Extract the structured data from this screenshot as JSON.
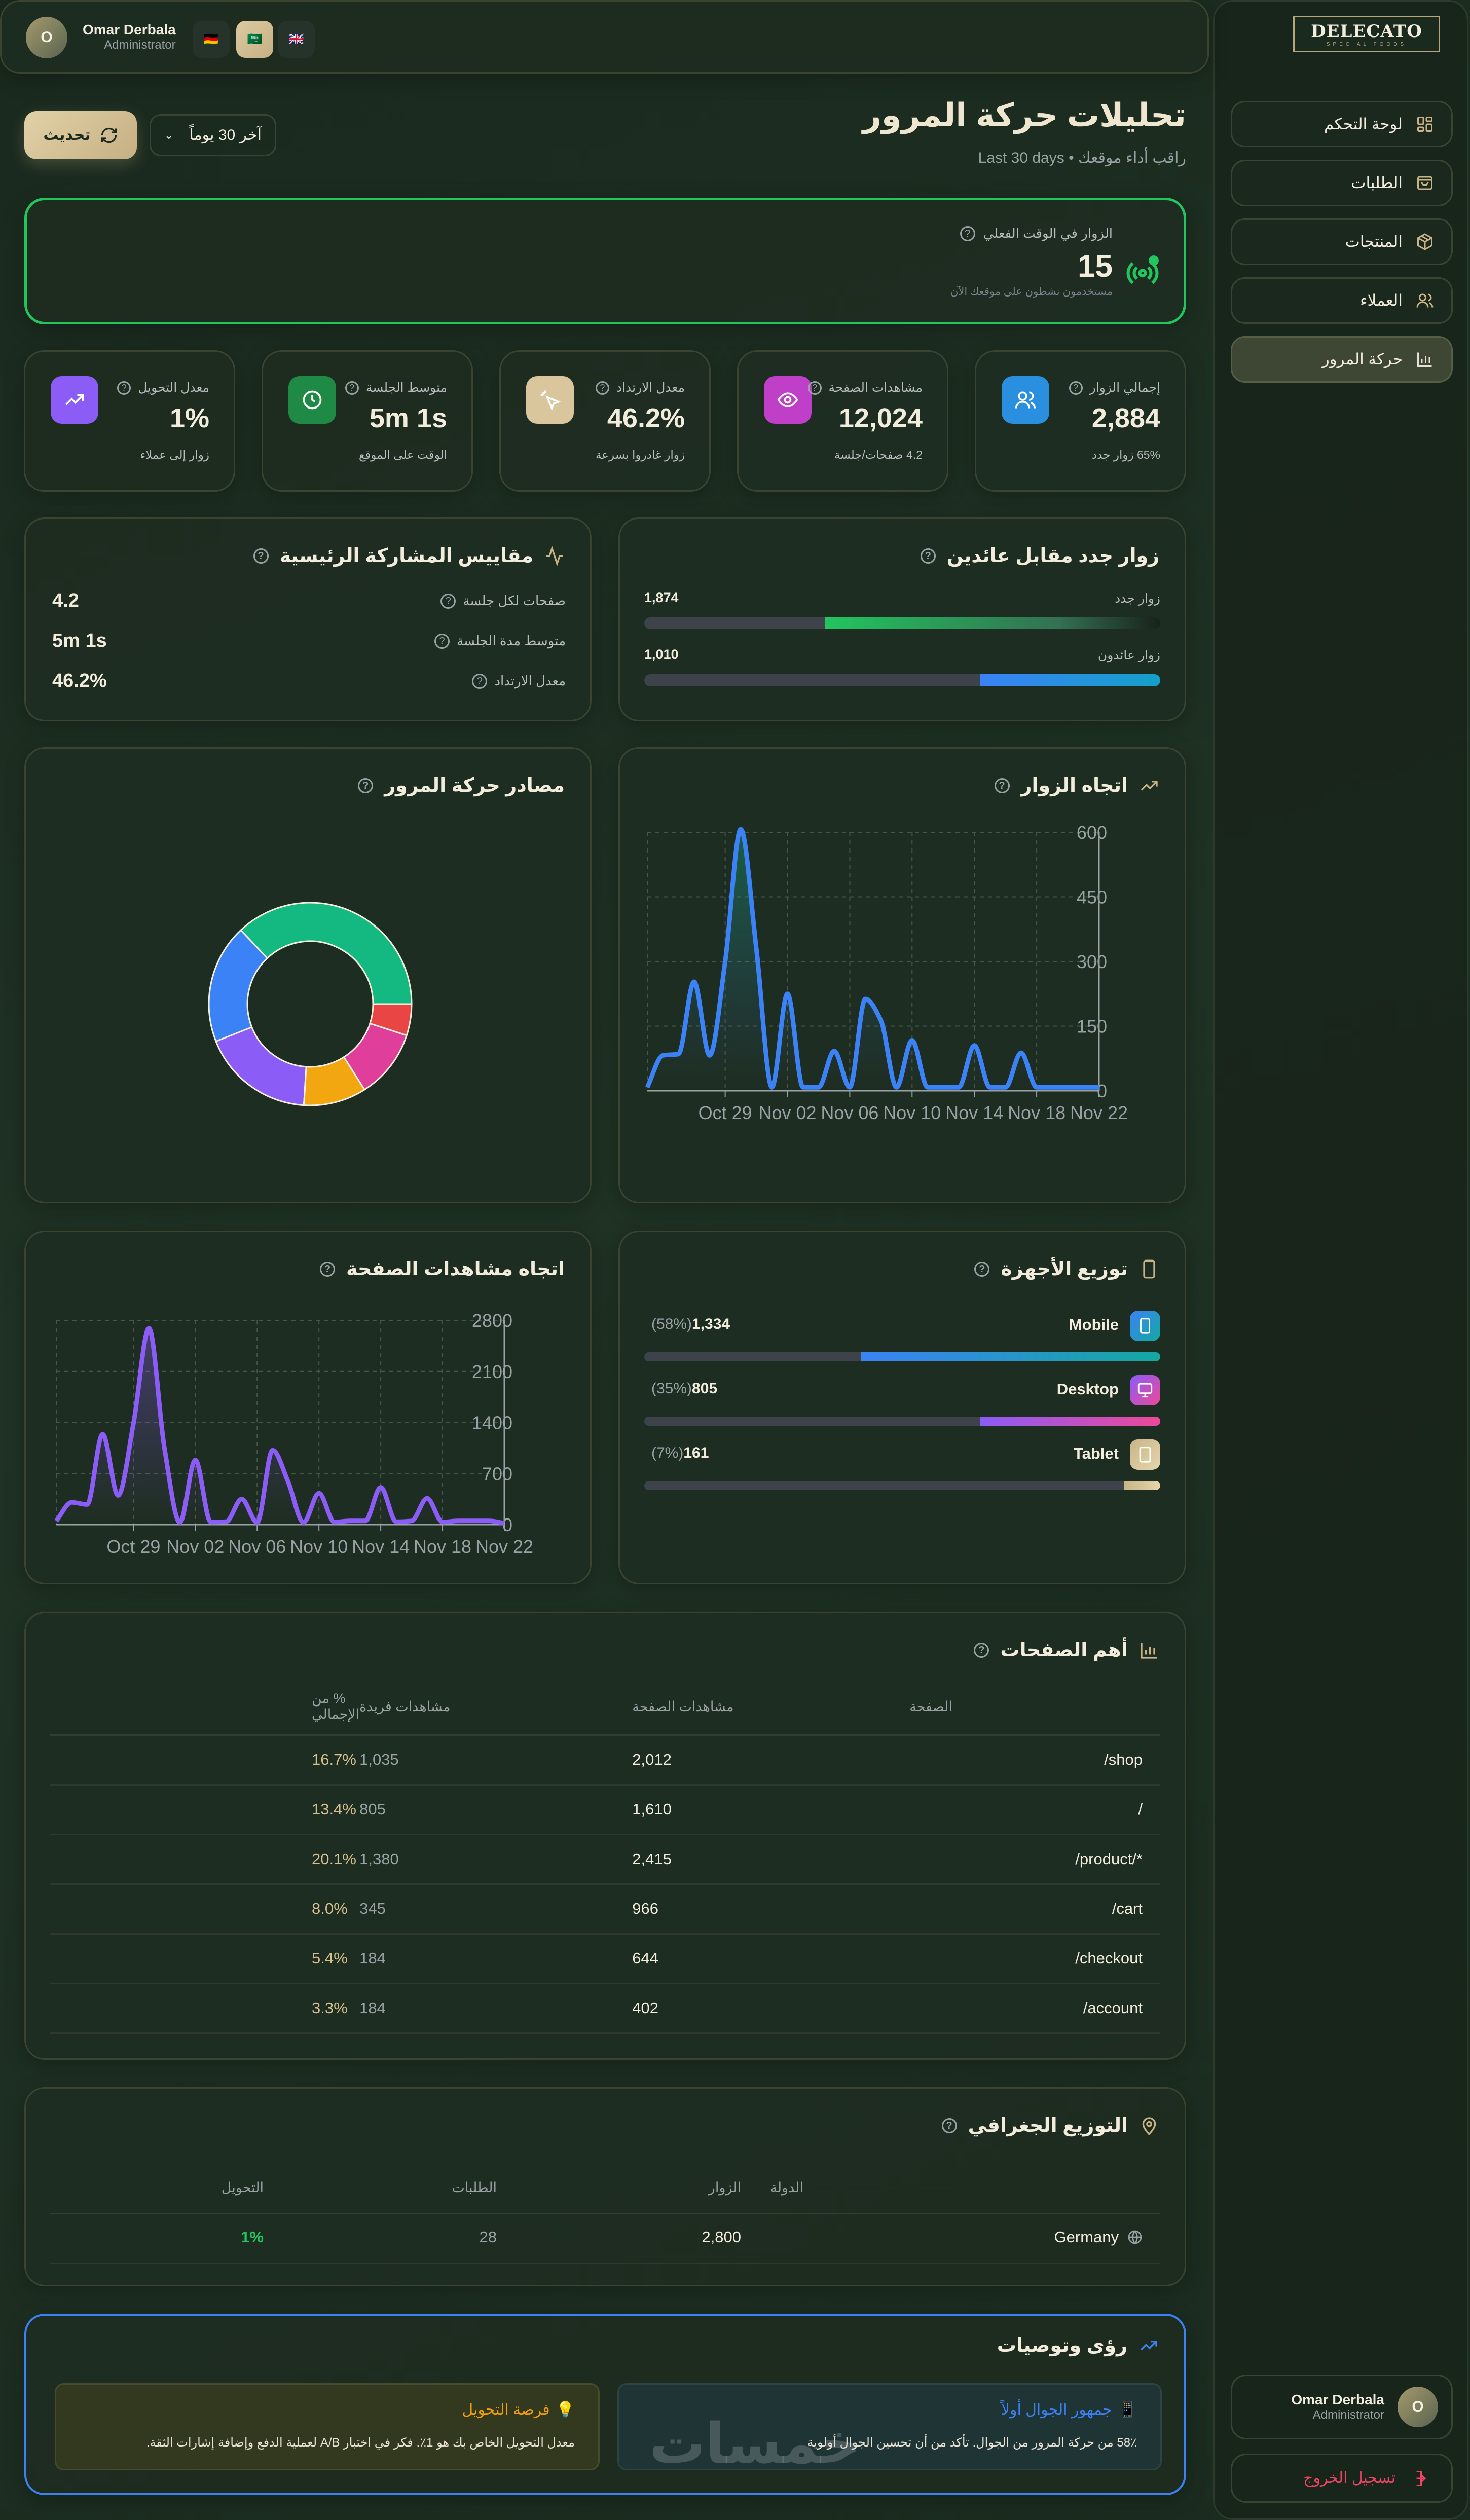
{
  "sidebar": {
    "logo": {
      "brand": "DELECATO",
      "tagline": "SPECIAL FOODS"
    },
    "items": [
      {
        "label": "لوحة التحكم",
        "icon": "dashboard-grid-icon"
      },
      {
        "label": "الطلبات",
        "icon": "shopping-bag-icon"
      },
      {
        "label": "المنتجات",
        "icon": "package-box-icon"
      },
      {
        "label": "العملاء",
        "icon": "users-icon"
      },
      {
        "label": "حركة المرور",
        "icon": "bar-chart-icon",
        "active": true
      }
    ],
    "user": {
      "name": "Omar Derbala",
      "role": "Administrator",
      "initial": "O"
    },
    "logout": "تسجيل الخروج"
  },
  "topbar": {
    "user": {
      "name": "Omar Derbala",
      "role": "Administrator",
      "initial": "O"
    },
    "languages": [
      {
        "flag": "🇩🇪",
        "code": "de"
      },
      {
        "flag": "🇸🇦",
        "code": "ar",
        "active": true
      },
      {
        "flag": "🇬🇧",
        "code": "en"
      }
    ]
  },
  "page": {
    "title": "تحليلات حركة المرور",
    "subtitle": "راقب أداء موقعك • Last 30 days",
    "refresh": "تحديث",
    "range": "آخر 30 يوماً"
  },
  "realtime": {
    "label": "الزوار في الوقت الفعلي",
    "value": "15",
    "sub": "مستخدمون نشطون على موقعك الآن"
  },
  "kpis": [
    {
      "label": "إجمالي الزوار",
      "value": "2,884",
      "sub": "65% زوار جدد",
      "icon": "users-icon",
      "color": "#2b8fe0"
    },
    {
      "label": "مشاهدات الصفحة",
      "value": "12,024",
      "sub": "4.2 صفحات/جلسة",
      "icon": "eye-icon",
      "color": "#c03fc9"
    },
    {
      "label": "معدل الارتداد",
      "value": "46.2%",
      "sub": "زوار غادروا بسرعة",
      "icon": "cursor-click-icon",
      "color": "#d9c69c"
    },
    {
      "label": "متوسط الجلسة",
      "value": "5m 1s",
      "sub": "الوقت على الموقع",
      "icon": "clock-icon",
      "color": "#1f8a45"
    },
    {
      "label": "معدل التحويل",
      "value": "1%",
      "sub": "زوار إلى عملاء",
      "icon": "trending-up-icon",
      "color": "#8b5cf6"
    }
  ],
  "engagement": {
    "title": "مقاييس المشاركة الرئيسية",
    "rows": [
      {
        "label": "صفحات لكل جلسة",
        "value": "4.2"
      },
      {
        "label": "متوسط مدة الجلسة",
        "value": "5m 1s"
      },
      {
        "label": "معدل الارتداد",
        "value": "46.2%"
      }
    ]
  },
  "new_vs_returning": {
    "title": "زوار جدد مقابل عائدين",
    "rows": [
      {
        "label": "زوار جدد",
        "value": "1,874",
        "percent": 65,
        "color": "#22c55e"
      },
      {
        "label": "زوار عائدون",
        "value": "1,010",
        "percent": 35,
        "color": "#3b82f6"
      }
    ]
  },
  "devices": {
    "title": "توزيع الأجهزة",
    "rows": [
      {
        "name": "Mobile",
        "value": "1,334",
        "pct": "(58%)",
        "percent": 58,
        "icon": "smartphone-icon",
        "from": "#3b82f6",
        "to": "#14a8a0"
      },
      {
        "name": "Desktop",
        "value": "805",
        "pct": "(35%)",
        "percent": 35,
        "icon": "monitor-icon",
        "from": "#8b5cf6",
        "to": "#ec4899"
      },
      {
        "name": "Tablet",
        "value": "161",
        "pct": "(7%)",
        "percent": 7,
        "icon": "tablet-icon",
        "from": "#c8b486",
        "to": "#e6d6ae"
      }
    ]
  },
  "top_pages": {
    "title": "أهم الصفحات",
    "headers": [
      "الصفحة",
      "مشاهدات الصفحة",
      "مشاهدات فريدة",
      "% من الإجمالي"
    ],
    "rows": [
      [
        "/shop",
        "2,012",
        "1,035",
        "16.7%"
      ],
      [
        "/",
        "1,610",
        "805",
        "13.4%"
      ],
      [
        "/product/*",
        "2,415",
        "1,380",
        "20.1%"
      ],
      [
        "/cart",
        "966",
        "345",
        "8.0%"
      ],
      [
        "/checkout",
        "644",
        "184",
        "5.4%"
      ],
      [
        "/account",
        "402",
        "184",
        "3.3%"
      ]
    ]
  },
  "geo": {
    "title": "التوزيع الجغرافي",
    "headers": [
      "الدولة",
      "الزوار",
      "الطلبات",
      "التحويل"
    ],
    "rows": [
      [
        "Germany",
        "2,800",
        "28",
        "1%"
      ]
    ]
  },
  "insights": {
    "title": "رؤى وتوصيات",
    "items": [
      {
        "title": "جمهور الجوال أولاً",
        "text": "58٪ من حركة المرور من الجوال. تأكد من أن تحسين الجوال أولوية",
        "color": "#3b82f6"
      },
      {
        "title": "فرصة التحويل",
        "text": "معدل التحويل الخاص بك هو 1٪. فكر في اختبار A/B لعملية الدفع وإضافة إشارات الثقة.",
        "color": "#f59e0b"
      }
    ],
    "watermark": "خمسات"
  },
  "chart_data": [
    {
      "type": "line",
      "title": "اتجاه الزوار",
      "color": "#3b82f6",
      "x_ticks": [
        "Oct 29",
        "Nov 02",
        "Nov 06",
        "Nov 10",
        "Nov 14",
        "Nov 18",
        "Nov 22"
      ],
      "x_tick_index": [
        5,
        9,
        13,
        17,
        21,
        25,
        29
      ],
      "y_ticks": [
        0,
        150,
        300,
        450,
        600
      ],
      "ylim": [
        0,
        600
      ],
      "x_start": "Oct 24",
      "x_end": "Nov 22",
      "values": [
        8,
        82,
        85,
        253,
        82,
        300,
        607,
        330,
        8,
        225,
        8,
        8,
        92,
        8,
        213,
        163,
        8,
        117,
        8,
        8,
        8,
        105,
        8,
        8,
        88,
        8,
        8,
        8,
        8,
        8
      ]
    },
    {
      "type": "line",
      "title": "اتجاه مشاهدات الصفحة",
      "color": "#8b5cf6",
      "x_ticks": [
        "Oct 29",
        "Nov 02",
        "Nov 06",
        "Nov 10",
        "Nov 14",
        "Nov 18",
        "Nov 22"
      ],
      "x_tick_index": [
        5,
        9,
        13,
        17,
        21,
        25,
        29
      ],
      "y_ticks": [
        0,
        700,
        1400,
        2100,
        2800
      ],
      "ylim": [
        0,
        2800
      ],
      "x_start": "Oct 24",
      "x_end": "Nov 22",
      "values": [
        50,
        305,
        275,
        1240,
        400,
        1390,
        2690,
        1050,
        30,
        885,
        35,
        40,
        350,
        30,
        1020,
        590,
        30,
        430,
        35,
        50,
        50,
        510,
        40,
        50,
        360,
        35,
        50,
        50,
        50,
        20
      ]
    },
    {
      "type": "pie",
      "title": "مصادر حركة المرور",
      "values": [
        37,
        19,
        18,
        10,
        11,
        5
      ],
      "colors": [
        "#14b881",
        "#3b82f6",
        "#8b5cf6",
        "#f2a60f",
        "#df3f9b",
        "#ea4545"
      ]
    }
  ]
}
